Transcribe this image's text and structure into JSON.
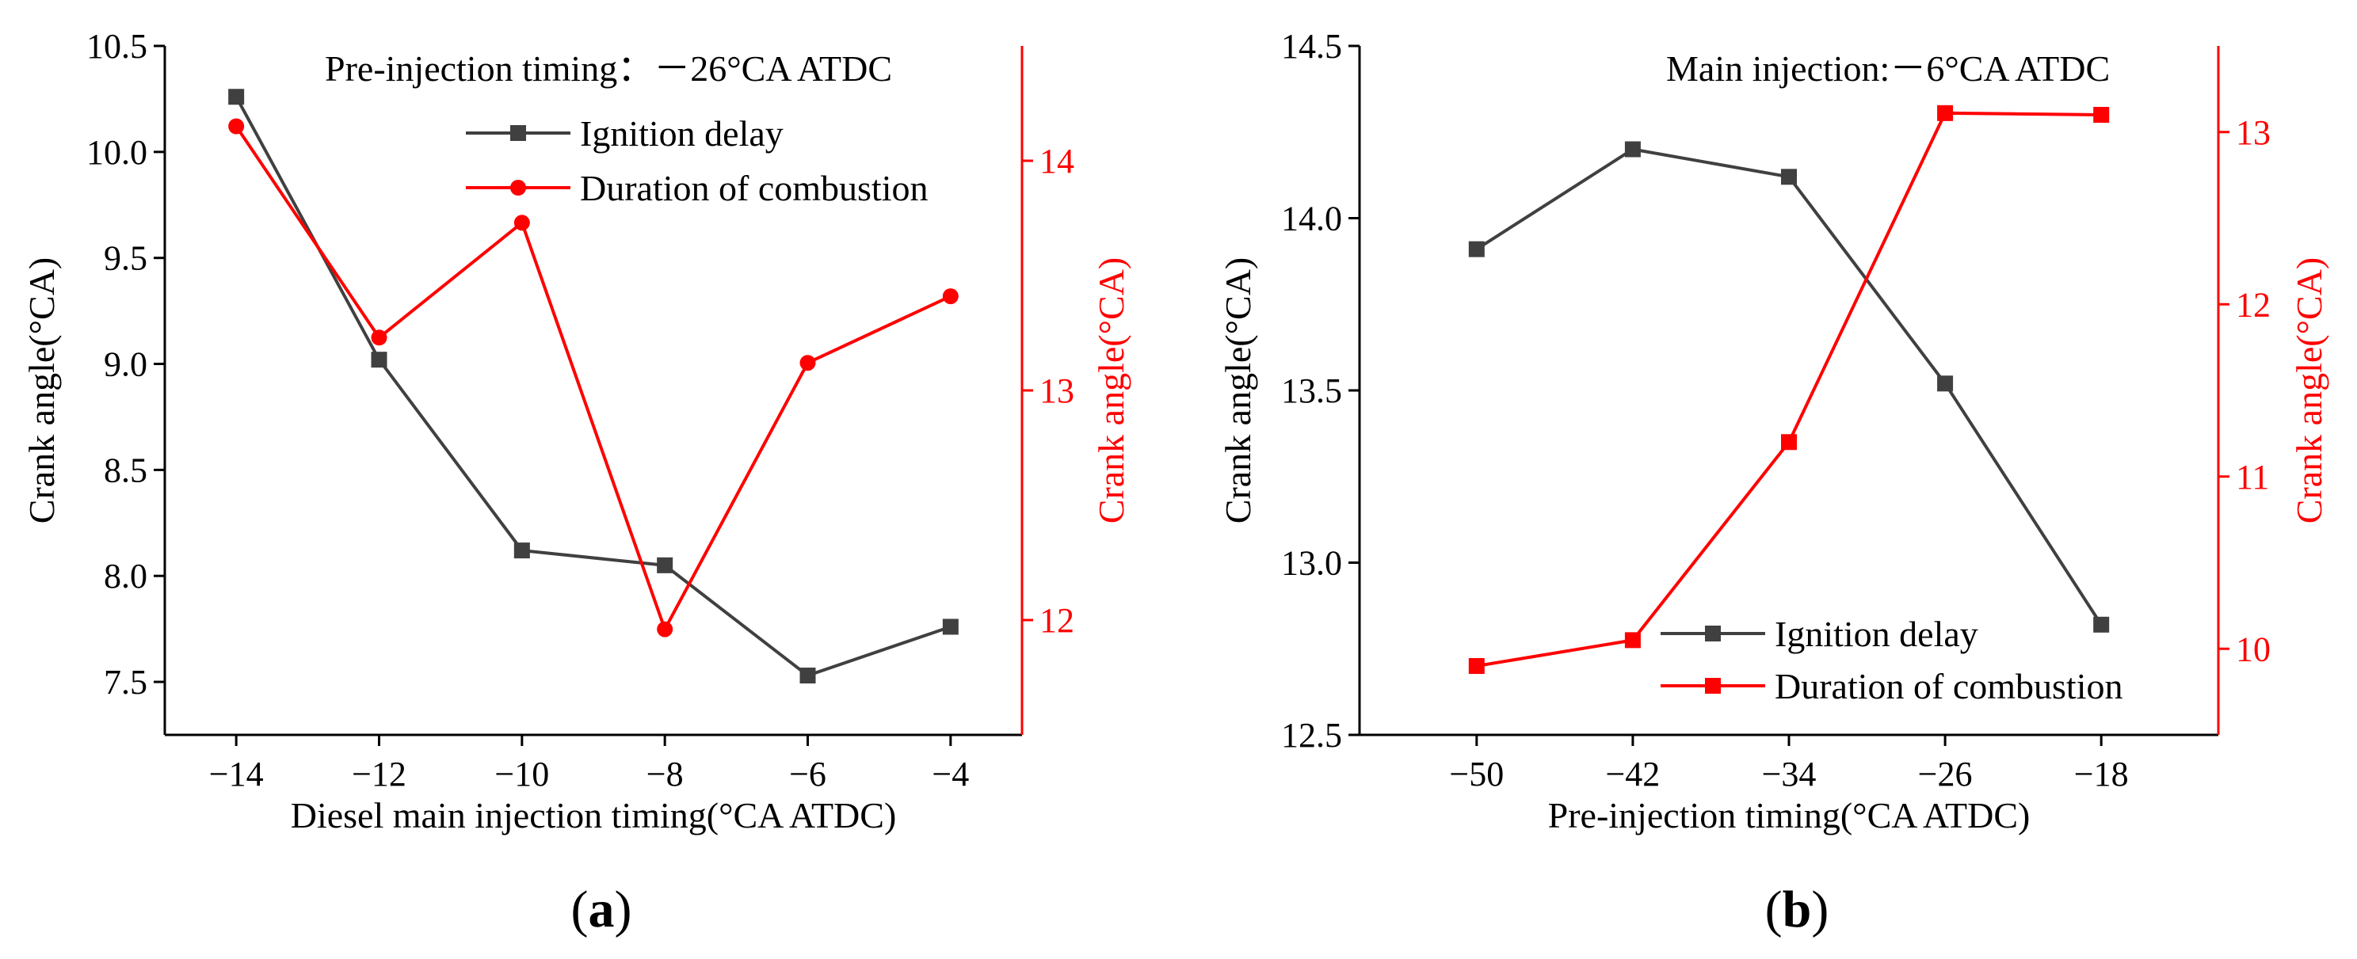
{
  "colors": {
    "black_series": "#404040",
    "red_series": "#ff0000",
    "axis": "#000000"
  },
  "chart_data": [
    {
      "id": "a",
      "caption": {
        "open": "(",
        "letter": "a",
        "close": ")"
      },
      "type": "line",
      "annotation": "Pre-injection timing：－26°CA ATDC",
      "xlabel": "Diesel main injection timing(°CA ATDC)",
      "ylabel_left": "Crank angle(°CA)",
      "ylabel_right": "Crank angle(°CA)",
      "x": [
        -14,
        -12,
        -10,
        -8,
        -6,
        -4
      ],
      "xticks": [
        -14,
        -12,
        -10,
        -8,
        -6,
        -4
      ],
      "xtick_labels": [
        "−14",
        "−12",
        "−10",
        "−8",
        "−6",
        "−4"
      ],
      "xlim": [
        -15,
        -3
      ],
      "ylim_left": [
        7.25,
        10.5
      ],
      "yticks_left": [
        7.5,
        8.0,
        8.5,
        9.0,
        9.5,
        10.0,
        10.5
      ],
      "ytick_labels_left": [
        "7.5",
        "8.0",
        "8.5",
        "9.0",
        "9.5",
        "10.0",
        "10.5"
      ],
      "ylim_right": [
        11.5,
        14.5
      ],
      "yticks_right": [
        12,
        13,
        14
      ],
      "ytick_labels_right": [
        "12",
        "13",
        "14"
      ],
      "legend_position": "top-right",
      "series": [
        {
          "name": "Ignition delay",
          "axis": "left",
          "marker": "square",
          "color": "#404040",
          "values": [
            10.26,
            9.02,
            8.12,
            8.05,
            7.53,
            7.76
          ]
        },
        {
          "name": "Duration of combustion",
          "axis": "right",
          "marker": "circle",
          "color": "#ff0000",
          "values": [
            14.15,
            13.23,
            13.73,
            11.96,
            13.12,
            13.41
          ]
        }
      ]
    },
    {
      "id": "b",
      "caption": {
        "open": "(",
        "letter": "b",
        "close": ")"
      },
      "type": "line",
      "annotation": "Main injection:－6°CA ATDC",
      "xlabel": "Pre-injection timing(°CA ATDC)",
      "ylabel_left": "Crank angle(°CA)",
      "ylabel_right": "Crank angle(°CA)",
      "x": [
        -50,
        -42,
        -34,
        -26,
        -18
      ],
      "xticks": [
        -50,
        -42,
        -34,
        -26,
        -18
      ],
      "xtick_labels": [
        "−50",
        "−42",
        "−34",
        "−26",
        "−18"
      ],
      "xlim": [
        -56,
        -12
      ],
      "ylim_left": [
        12.5,
        14.5
      ],
      "yticks_left": [
        12.5,
        13.0,
        13.5,
        14.0,
        14.5
      ],
      "ytick_labels_left": [
        "12.5",
        "13.0",
        "13.5",
        "14.0",
        "14.5"
      ],
      "ylim_right": [
        9.5,
        13.5
      ],
      "yticks_right": [
        10,
        11,
        12,
        13
      ],
      "ytick_labels_right": [
        "10",
        "11",
        "12",
        "13"
      ],
      "legend_position": "bottom-right",
      "series": [
        {
          "name": "Ignition delay",
          "axis": "left",
          "marker": "square",
          "color": "#404040",
          "values": [
            13.91,
            14.2,
            14.12,
            13.52,
            12.82
          ]
        },
        {
          "name": "Duration of combustion",
          "axis": "right",
          "marker": "square",
          "color": "#ff0000",
          "values": [
            9.9,
            10.05,
            11.2,
            13.11,
            13.1
          ]
        }
      ]
    }
  ]
}
